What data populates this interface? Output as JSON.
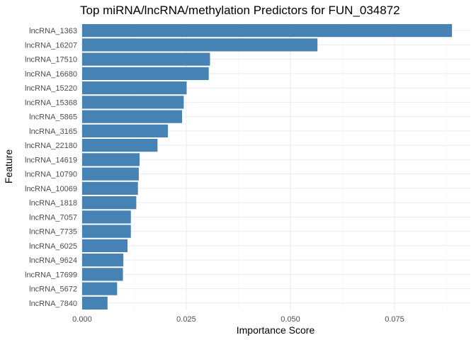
{
  "chart_data": {
    "type": "bar",
    "orientation": "horizontal",
    "title": "Top miRNA/lncRNA/methylation Predictors for FUN_034872",
    "xlabel": "Importance Score",
    "ylabel": "Feature",
    "bar_color": "#4682b4",
    "grid": true,
    "legend": "none",
    "xlim": [
      -0.0005,
      0.0932
    ],
    "x_ticks": [
      0.0,
      0.025,
      0.05,
      0.075
    ],
    "x_tick_labels": [
      "0.000",
      "0.025",
      "0.050",
      "0.075"
    ],
    "categories": [
      "lncRNA_1363",
      "lncRNA_16207",
      "lncRNA_17510",
      "lncRNA_16680",
      "lncRNA_15220",
      "lncRNA_15368",
      "lncRNA_5865",
      "lncRNA_3165",
      "lncRNA_22180",
      "lncRNA_14619",
      "lncRNA_10790",
      "lncRNA_10069",
      "lncRNA_1818",
      "lncRNA_7057",
      "lncRNA_7735",
      "lncRNA_6025",
      "lncRNA_9624",
      "lncRNA_17699",
      "lncRNA_5672",
      "lncRNA_7840"
    ],
    "values": [
      0.0888,
      0.0565,
      0.0307,
      0.0304,
      0.0251,
      0.0244,
      0.024,
      0.0206,
      0.0181,
      0.0138,
      0.0136,
      0.0134,
      0.013,
      0.0117,
      0.0117,
      0.0109,
      0.0099,
      0.0098,
      0.0084,
      0.0061
    ]
  }
}
